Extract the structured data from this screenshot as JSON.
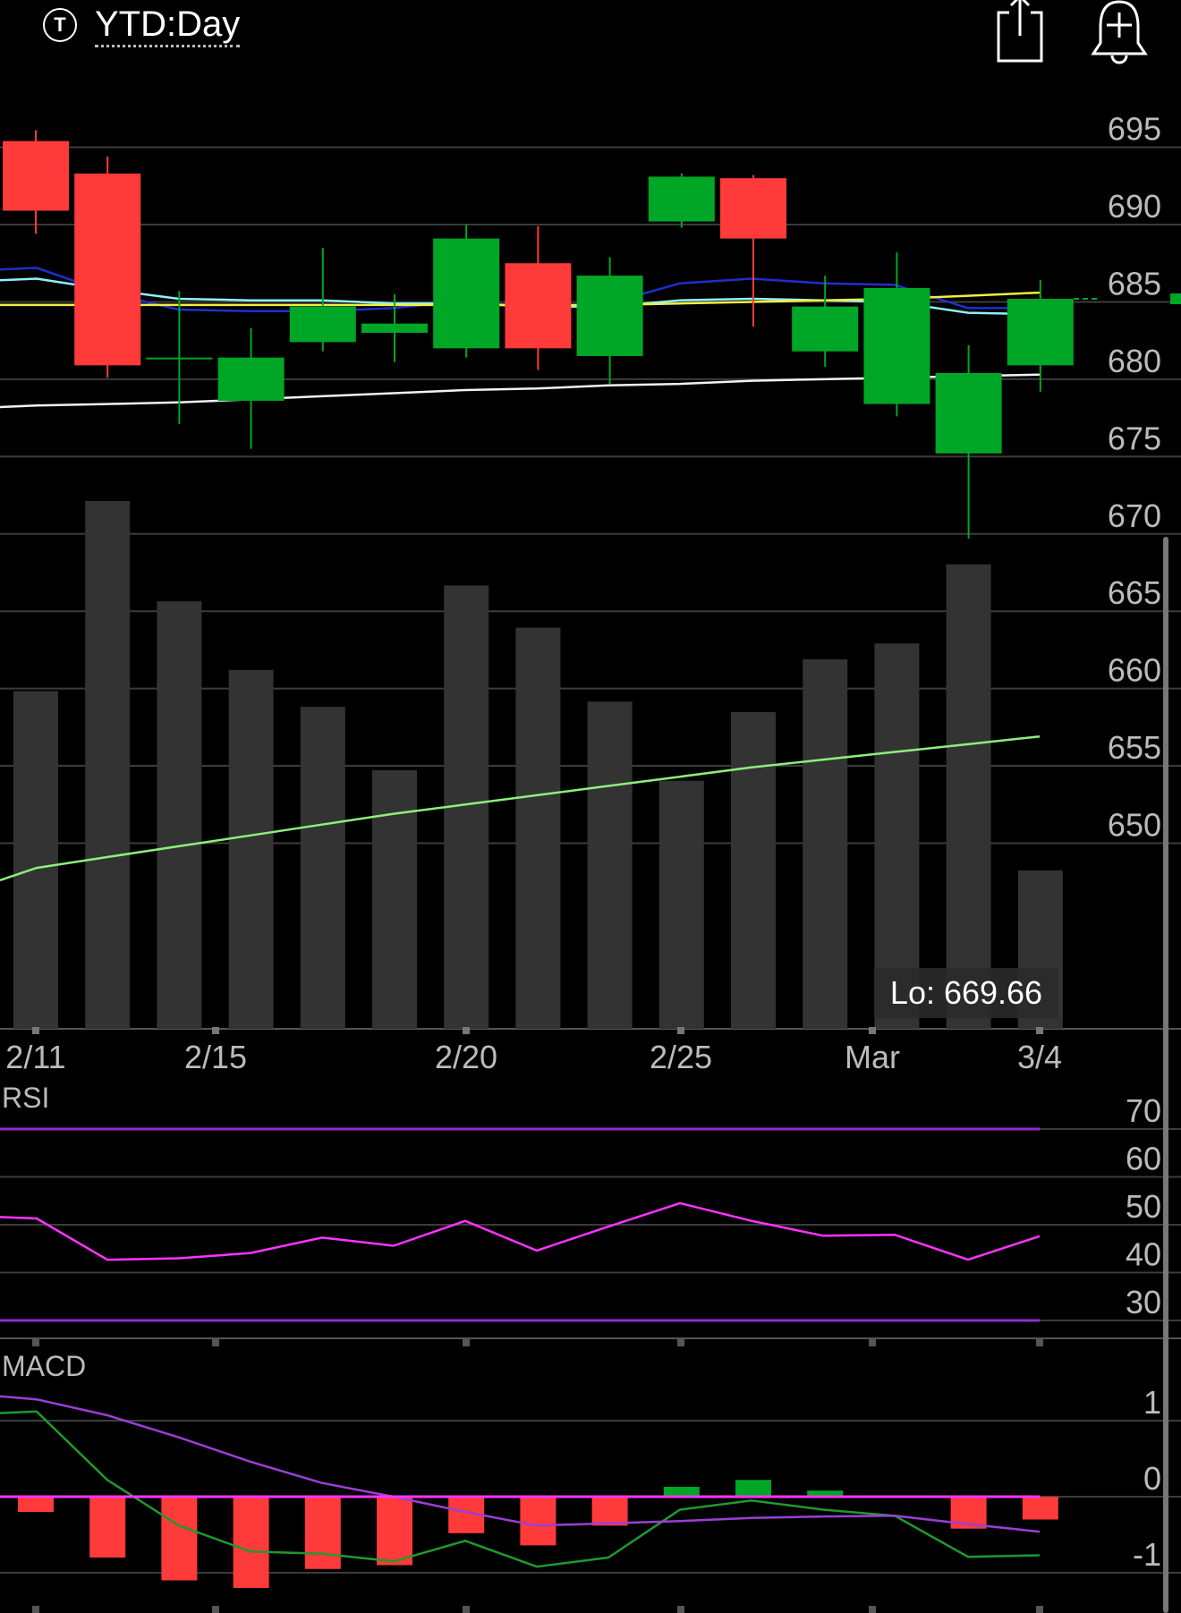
{
  "header": {
    "ticker_icon_letter": "T",
    "range_label": "YTD:Day",
    "icons": [
      "share-icon",
      "bell-plus-icon"
    ]
  },
  "chart_data": [
    {
      "type": "candlestick",
      "title": "",
      "x_tick_labels": [
        "2/11",
        "2/15",
        "2/20",
        "2/25",
        "Mar",
        "3/4"
      ],
      "y_ticks": [
        695,
        690,
        685,
        680,
        675,
        670,
        665,
        660,
        655,
        650
      ],
      "ylim": [
        645.4,
        699.2
      ],
      "candles": [
        {
          "o": 695.4,
          "h": 696.1,
          "l": 689.4,
          "c": 690.9,
          "color": "red"
        },
        {
          "o": 693.3,
          "h": 694.4,
          "l": 680.1,
          "c": 680.9,
          "color": "red"
        },
        {
          "o": 681.4,
          "h": 685.7,
          "l": 677.1,
          "c": 681.4,
          "color": "green"
        },
        {
          "o": 678.6,
          "h": 683.3,
          "l": 675.5,
          "c": 681.4,
          "color": "green"
        },
        {
          "o": 682.4,
          "h": 688.5,
          "l": 681.8,
          "c": 684.7,
          "color": "green"
        },
        {
          "o": 683.0,
          "h": 685.5,
          "l": 681.1,
          "c": 683.6,
          "color": "green"
        },
        {
          "o": 682.0,
          "h": 690.0,
          "l": 681.4,
          "c": 689.1,
          "color": "green"
        },
        {
          "o": 687.5,
          "h": 689.9,
          "l": 680.6,
          "c": 682.0,
          "color": "red"
        },
        {
          "o": 681.5,
          "h": 687.9,
          "l": 679.7,
          "c": 686.7,
          "color": "green"
        },
        {
          "o": 690.2,
          "h": 693.3,
          "l": 689.8,
          "c": 693.1,
          "color": "green"
        },
        {
          "o": 693.0,
          "h": 693.2,
          "l": 683.4,
          "c": 689.1,
          "color": "red"
        },
        {
          "o": 681.8,
          "h": 686.7,
          "l": 680.8,
          "c": 684.7,
          "color": "green"
        },
        {
          "o": 678.4,
          "h": 688.2,
          "l": 677.6,
          "c": 685.9,
          "color": "green"
        },
        {
          "o": 675.2,
          "h": 682.2,
          "l": 669.7,
          "c": 680.4,
          "color": "green"
        },
        {
          "o": 680.9,
          "h": 686.4,
          "l": 679.2,
          "c": 685.2,
          "color": "green"
        }
      ],
      "ma_lines": [
        {
          "color": "#1e2fd0",
          "values": [
            687.1,
            687.2,
            685.6,
            684.5,
            684.4,
            684.4,
            684.6,
            685.1,
            684.6,
            684.9,
            686.2,
            686.5,
            686.2,
            686.1,
            684.6,
            684.6
          ]
        },
        {
          "color": "#8ff0ff",
          "values": [
            686.4,
            686.5,
            685.8,
            685.2,
            685.1,
            685.1,
            684.9,
            684.9,
            684.7,
            684.7,
            685.1,
            685.2,
            685.1,
            685.0,
            684.3,
            684.2
          ]
        },
        {
          "color": "#f0f040",
          "values": [
            684.8,
            684.8,
            684.8,
            684.8,
            684.8,
            684.8,
            684.8,
            684.8,
            684.8,
            684.8,
            684.9,
            685.0,
            685.1,
            685.2,
            685.4,
            685.6
          ]
        },
        {
          "color": "#f2f2f2",
          "values": [
            678.2,
            678.3,
            678.4,
            678.5,
            678.7,
            678.9,
            679.1,
            679.3,
            679.4,
            679.6,
            679.7,
            679.9,
            680.0,
            680.1,
            680.2,
            680.3
          ]
        },
        {
          "color": "#8cf07a",
          "values": [
            647.6,
            648.4,
            649.1,
            649.8,
            650.5,
            651.2,
            651.9,
            652.5,
            653.1,
            653.7,
            654.3,
            654.9,
            655.4,
            655.9,
            656.4,
            656.9
          ]
        }
      ],
      "last_price_marker": 685.2,
      "volume_bars_relative": [
        0.64,
        1.0,
        0.81,
        0.68,
        0.61,
        0.49,
        0.84,
        0.76,
        0.62,
        0.47,
        0.6,
        0.7,
        0.73,
        0.88,
        0.3
      ],
      "low_label": "Lo: 669.66"
    },
    {
      "type": "line",
      "title": "RSI",
      "y_ticks": [
        70,
        60,
        50,
        40,
        30
      ],
      "reference_lines": [
        70,
        30
      ],
      "values": [
        51.6,
        51.3,
        42.7,
        43.0,
        44.1,
        47.3,
        45.6,
        50.8,
        44.6,
        49.6,
        54.5,
        50.8,
        47.7,
        47.9,
        42.7,
        47.6
      ]
    },
    {
      "type": "bar",
      "title": "MACD",
      "y_ticks": [
        1,
        0,
        -1
      ],
      "histogram": [
        -0.2,
        -0.8,
        -1.1,
        -1.2,
        -0.95,
        -0.9,
        -0.48,
        -0.64,
        -0.38,
        0.13,
        0.22,
        0.08,
        0,
        -0.42,
        -0.3
      ],
      "macd_line": [
        1.1,
        1.12,
        0.22,
        -0.38,
        -0.72,
        -0.75,
        -0.85,
        -0.58,
        -0.92,
        -0.8,
        -0.17,
        -0.05,
        -0.17,
        -0.25,
        -0.79,
        -0.77
      ],
      "signal_line": [
        1.32,
        1.28,
        1.07,
        0.78,
        0.46,
        0.18,
        0.0,
        -0.2,
        -0.38,
        -0.35,
        -0.32,
        -0.28,
        -0.26,
        -0.25,
        -0.36,
        -0.46
      ]
    }
  ]
}
